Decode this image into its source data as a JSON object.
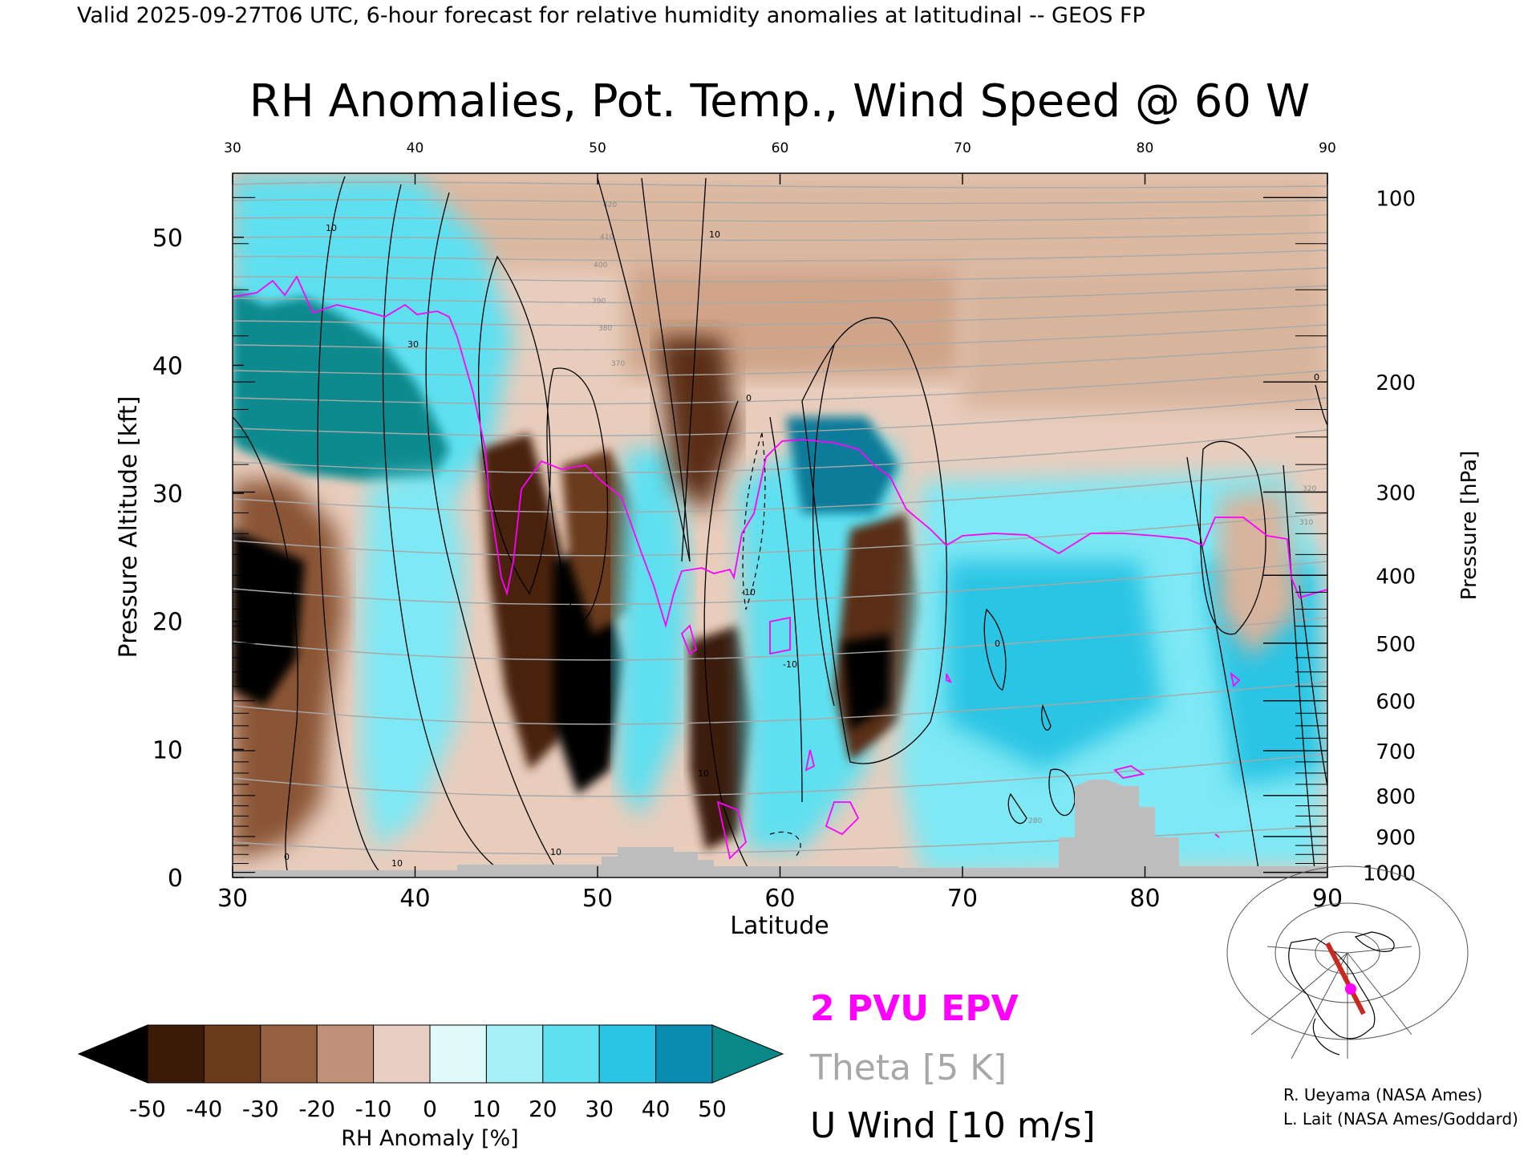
{
  "header": "Valid 2025-09-27T06 UTC, 6-hour forecast for relative humidity anomalies at latitudinal -- GEOS FP",
  "chart_data": {
    "type": "heatmap",
    "title": "RH Anomalies, Pot. Temp., Wind Speed @ 60 W",
    "xlabel": "Latitude",
    "ylabel_left": "Pressure Altitude [kft]",
    "ylabel_right": "Pressure [hPa]",
    "xlim": [
      30,
      90
    ],
    "ylim": [
      0,
      55
    ],
    "x_ticks": [
      30,
      40,
      50,
      60,
      70,
      80,
      90
    ],
    "y_ticks_left": [
      0,
      10,
      20,
      30,
      40,
      50
    ],
    "pressure_ticks": [
      {
        "label": "100",
        "kft": 53.1
      },
      {
        "label": "200",
        "kft": 38.7
      },
      {
        "label": "300",
        "kft": 30.1
      },
      {
        "label": "400",
        "kft": 23.6
      },
      {
        "label": "500",
        "kft": 18.3
      },
      {
        "label": "600",
        "kft": 13.8
      },
      {
        "label": "700",
        "kft": 9.9
      },
      {
        "label": "800",
        "kft": 6.4
      },
      {
        "label": "900",
        "kft": 3.2
      },
      {
        "label": "1000",
        "kft": 0.4
      }
    ],
    "colorbar": {
      "label": "RH Anomaly [%]",
      "ticks": [
        "-50",
        "-40",
        "-30",
        "-20",
        "-10",
        "0",
        "10",
        "20",
        "30",
        "40",
        "50"
      ],
      "colors": [
        "#000000",
        "#3b1a08",
        "#6b3a1a",
        "#946040",
        "#c09078",
        "#e8cfc2",
        "#e0fafa",
        "#a8f0f8",
        "#5ee0f0",
        "#2ac4e4",
        "#0a8cb0",
        "#0a8888"
      ]
    },
    "theta_labels": [
      "420",
      "410",
      "400",
      "390",
      "380",
      "370",
      "320",
      "310",
      "280"
    ],
    "wind_labels": [
      "0",
      "10",
      "30",
      "-10"
    ],
    "epv_color": "#ff00ff",
    "theta_color": "#a8a8a8"
  },
  "legend": {
    "epv": "2 PVU EPV",
    "theta": "Theta [5 K]",
    "wind": "U Wind [10 m/s]"
  },
  "credits": {
    "line1": "R. Ueyama (NASA Ames)",
    "line2": "L. Lait (NASA Ames/Goddard)"
  }
}
